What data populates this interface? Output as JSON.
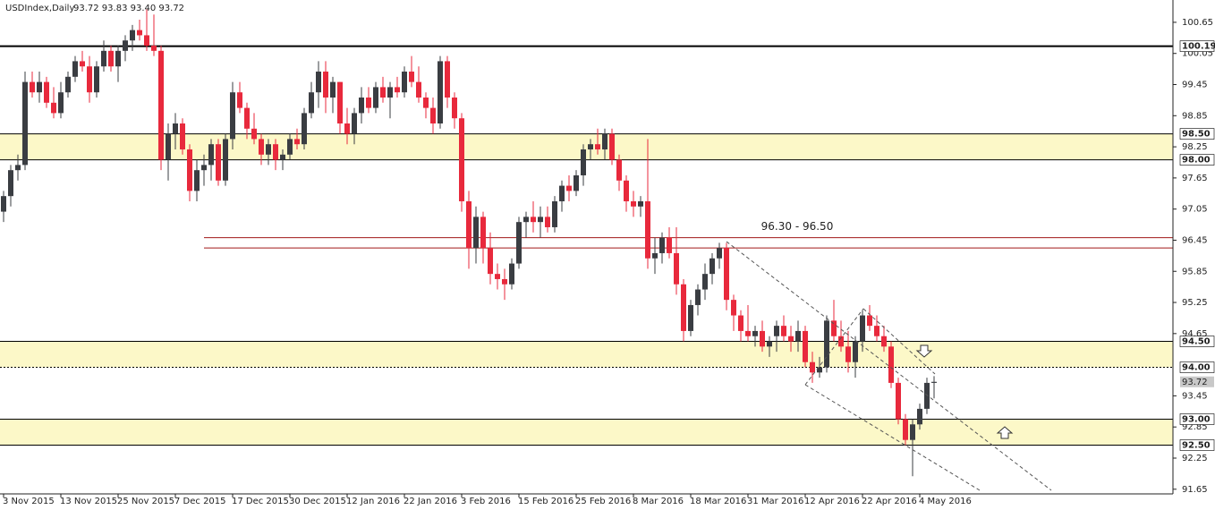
{
  "chart_data": {
    "type": "candlestick",
    "title": "USDIndex,Daily",
    "subtitle": "93.72 93.83 93.40 93.72",
    "ylim": [
      91.56,
      101.08
    ],
    "yticks": [
      100.65,
      100.05,
      99.45,
      98.85,
      98.25,
      97.65,
      97.05,
      96.45,
      95.85,
      95.25,
      94.65,
      93.45,
      92.85,
      92.25,
      91.65
    ],
    "bull_color": "#3a3d42",
    "bear_color": "#e8293c",
    "categories": [
      "3 Nov 2015",
      null,
      null,
      null,
      null,
      null,
      null,
      null,
      "13 Nov 2015",
      null,
      null,
      null,
      null,
      null,
      null,
      null,
      "25 Nov 2015",
      null,
      null,
      null,
      null,
      null,
      null,
      null,
      "7 Dec 2015",
      null,
      null,
      null,
      null,
      null,
      null,
      null,
      "17 Dec 2015",
      null,
      null,
      null,
      null,
      null,
      null,
      null,
      "30 Dec 2015",
      null,
      null,
      null,
      null,
      null,
      null,
      null,
      "12 Jan 2016",
      null,
      null,
      null,
      null,
      null,
      null,
      null,
      "22 Jan 2016",
      null,
      null,
      null,
      null,
      null,
      null,
      null,
      "3 Feb 2016",
      null,
      null,
      null,
      null,
      null,
      null,
      null,
      "15 Feb 2016",
      null,
      null,
      null,
      null,
      null,
      null,
      null,
      "25 Feb 2016",
      null,
      null,
      null,
      null,
      null,
      null,
      null,
      "8 Mar 2016",
      null,
      null,
      null,
      null,
      null,
      null,
      null,
      "18 Mar 2016",
      null,
      null,
      null,
      null,
      null,
      null,
      null,
      "31 Mar 2016",
      null,
      null,
      null,
      null,
      null,
      null,
      null,
      "12 Apr 2016",
      null,
      null,
      null,
      null,
      null,
      null,
      null,
      "22 Apr 2016",
      null,
      null,
      null,
      null,
      null,
      null,
      null,
      "4 May 2016",
      null,
      null
    ],
    "ohlc": [
      [
        97.0,
        97.4,
        96.8,
        97.3
      ],
      [
        97.3,
        97.9,
        97.1,
        97.8
      ],
      [
        97.8,
        98.1,
        97.6,
        97.9
      ],
      [
        97.9,
        99.7,
        97.8,
        99.5
      ],
      [
        99.5,
        99.7,
        99.2,
        99.3
      ],
      [
        99.3,
        99.7,
        99.1,
        99.5
      ],
      [
        99.5,
        99.6,
        99.0,
        99.1
      ],
      [
        99.1,
        99.4,
        98.8,
        98.9
      ],
      [
        98.9,
        99.5,
        98.8,
        99.3
      ],
      [
        99.3,
        99.7,
        99.2,
        99.6
      ],
      [
        99.6,
        100.0,
        99.5,
        99.9
      ],
      [
        99.9,
        100.1,
        99.7,
        99.8
      ],
      [
        99.8,
        100.0,
        99.1,
        99.3
      ],
      [
        99.3,
        99.9,
        99.2,
        99.8
      ],
      [
        99.8,
        100.3,
        99.7,
        100.1
      ],
      [
        100.1,
        100.2,
        99.7,
        99.8
      ],
      [
        99.8,
        100.2,
        99.5,
        100.1
      ],
      [
        100.1,
        100.4,
        99.9,
        100.3
      ],
      [
        100.3,
        100.6,
        100.1,
        100.5
      ],
      [
        100.5,
        100.7,
        100.3,
        100.4
      ],
      [
        100.4,
        100.9,
        100.1,
        100.2
      ],
      [
        100.2,
        100.8,
        100.0,
        100.1
      ],
      [
        100.1,
        100.2,
        97.8,
        98.0
      ],
      [
        98.0,
        98.7,
        97.6,
        98.5
      ],
      [
        98.5,
        98.9,
        98.2,
        98.7
      ],
      [
        98.7,
        98.8,
        98.1,
        98.2
      ],
      [
        98.2,
        98.3,
        97.2,
        97.4
      ],
      [
        97.4,
        98.0,
        97.2,
        97.8
      ],
      [
        97.8,
        98.1,
        97.5,
        97.9
      ],
      [
        97.9,
        98.4,
        97.6,
        98.3
      ],
      [
        98.3,
        98.4,
        97.5,
        97.6
      ],
      [
        97.6,
        98.5,
        97.5,
        98.4
      ],
      [
        98.4,
        99.5,
        98.2,
        99.3
      ],
      [
        99.3,
        99.5,
        98.9,
        99.0
      ],
      [
        99.0,
        99.1,
        98.4,
        98.6
      ],
      [
        98.6,
        98.9,
        98.3,
        98.4
      ],
      [
        98.4,
        98.5,
        97.9,
        98.1
      ],
      [
        98.1,
        98.4,
        97.9,
        98.3
      ],
      [
        98.3,
        98.4,
        97.8,
        98.0
      ],
      [
        98.0,
        98.2,
        97.8,
        98.1
      ],
      [
        98.1,
        98.5,
        98.0,
        98.4
      ],
      [
        98.4,
        98.6,
        98.2,
        98.3
      ],
      [
        98.3,
        99.0,
        98.2,
        98.9
      ],
      [
        98.9,
        99.5,
        98.8,
        99.3
      ],
      [
        99.3,
        99.9,
        99.0,
        99.7
      ],
      [
        99.7,
        99.9,
        98.9,
        99.2
      ],
      [
        99.2,
        99.6,
        98.9,
        99.5
      ],
      [
        99.5,
        99.5,
        98.5,
        98.7
      ],
      [
        98.7,
        99.0,
        98.3,
        98.5
      ],
      [
        98.5,
        99.0,
        98.3,
        98.9
      ],
      [
        98.9,
        99.4,
        98.7,
        99.2
      ],
      [
        99.2,
        99.4,
        98.9,
        99.0
      ],
      [
        99.0,
        99.5,
        98.9,
        99.4
      ],
      [
        99.4,
        99.6,
        99.1,
        99.2
      ],
      [
        99.2,
        99.5,
        98.8,
        99.4
      ],
      [
        99.4,
        99.6,
        99.2,
        99.3
      ],
      [
        99.3,
        99.8,
        99.2,
        99.7
      ],
      [
        99.7,
        100.0,
        99.4,
        99.5
      ],
      [
        99.5,
        99.8,
        99.1,
        99.2
      ],
      [
        99.2,
        99.3,
        98.8,
        99.0
      ],
      [
        99.0,
        99.2,
        98.5,
        98.7
      ],
      [
        98.7,
        100.0,
        98.6,
        99.9
      ],
      [
        99.9,
        100.0,
        99.0,
        99.2
      ],
      [
        99.2,
        99.3,
        98.6,
        98.8
      ],
      [
        98.8,
        98.9,
        97.0,
        97.2
      ],
      [
        97.2,
        97.4,
        95.9,
        96.3
      ],
      [
        96.3,
        97.1,
        96.0,
        96.9
      ],
      [
        96.9,
        97.0,
        96.0,
        96.3
      ],
      [
        96.3,
        96.6,
        95.6,
        95.8
      ],
      [
        95.8,
        96.0,
        95.5,
        95.7
      ],
      [
        95.7,
        95.9,
        95.3,
        95.6
      ],
      [
        95.6,
        96.1,
        95.5,
        96.0
      ],
      [
        96.0,
        96.9,
        95.9,
        96.8
      ],
      [
        96.8,
        97.0,
        96.5,
        96.9
      ],
      [
        96.9,
        97.2,
        96.6,
        96.8
      ],
      [
        96.8,
        97.1,
        96.5,
        96.9
      ],
      [
        96.9,
        97.1,
        96.6,
        96.7
      ],
      [
        96.7,
        97.3,
        96.6,
        97.2
      ],
      [
        97.2,
        97.6,
        97.0,
        97.5
      ],
      [
        97.5,
        97.7,
        97.2,
        97.4
      ],
      [
        97.4,
        97.8,
        97.3,
        97.7
      ],
      [
        97.7,
        98.3,
        97.5,
        98.2
      ],
      [
        98.2,
        98.4,
        98.0,
        98.3
      ],
      [
        98.3,
        98.6,
        98.1,
        98.2
      ],
      [
        98.2,
        98.6,
        98.0,
        98.5
      ],
      [
        98.5,
        98.6,
        97.9,
        98.0
      ],
      [
        98.0,
        98.1,
        97.4,
        97.6
      ],
      [
        97.6,
        97.7,
        97.0,
        97.2
      ],
      [
        97.2,
        97.4,
        96.9,
        97.1
      ],
      [
        97.1,
        97.3,
        96.9,
        97.2
      ],
      [
        97.2,
        98.4,
        95.9,
        96.1
      ],
      [
        96.1,
        96.5,
        95.8,
        96.2
      ],
      [
        96.2,
        96.6,
        96.0,
        96.5
      ],
      [
        96.5,
        96.7,
        96.1,
        96.2
      ],
      [
        96.2,
        96.7,
        95.4,
        95.6
      ],
      [
        95.6,
        95.7,
        94.5,
        94.7
      ],
      [
        94.7,
        95.3,
        94.6,
        95.2
      ],
      [
        95.2,
        95.6,
        95.0,
        95.5
      ],
      [
        95.5,
        96.0,
        95.3,
        95.8
      ],
      [
        95.8,
        96.2,
        95.6,
        96.1
      ],
      [
        96.1,
        96.4,
        95.9,
        96.3
      ],
      [
        96.3,
        96.4,
        95.1,
        95.3
      ],
      [
        95.3,
        95.4,
        94.7,
        95.0
      ],
      [
        95.0,
        95.1,
        94.5,
        94.7
      ],
      [
        94.7,
        95.2,
        94.5,
        94.6
      ],
      [
        94.6,
        94.8,
        94.4,
        94.7
      ],
      [
        94.7,
        94.9,
        94.3,
        94.4
      ],
      [
        94.4,
        94.6,
        94.2,
        94.5
      ],
      [
        94.6,
        94.9,
        94.3,
        94.8
      ],
      [
        94.8,
        95.0,
        94.5,
        94.6
      ],
      [
        94.6,
        94.8,
        94.3,
        94.5
      ],
      [
        94.5,
        94.9,
        94.3,
        94.7
      ],
      [
        94.7,
        94.8,
        94.0,
        94.1
      ],
      [
        94.1,
        94.3,
        93.7,
        93.9
      ],
      [
        93.9,
        94.2,
        93.8,
        94.0
      ],
      [
        94.0,
        95.0,
        93.9,
        94.9
      ],
      [
        94.9,
        95.3,
        94.5,
        94.6
      ],
      [
        94.6,
        94.9,
        94.3,
        94.4
      ],
      [
        94.4,
        94.7,
        93.9,
        94.1
      ],
      [
        94.1,
        94.6,
        93.8,
        94.5
      ],
      [
        94.5,
        95.1,
        94.3,
        95.0
      ],
      [
        95.0,
        95.2,
        94.7,
        94.8
      ],
      [
        94.8,
        95.0,
        94.5,
        94.6
      ],
      [
        94.6,
        94.8,
        94.3,
        94.4
      ],
      [
        94.4,
        94.5,
        93.6,
        93.7
      ],
      [
        93.7,
        93.8,
        92.9,
        93.0
      ],
      [
        93.0,
        93.1,
        92.5,
        92.6
      ],
      [
        92.6,
        93.0,
        91.9,
        92.9
      ],
      [
        92.9,
        93.3,
        92.8,
        93.2
      ],
      [
        93.2,
        93.8,
        93.1,
        93.7
      ],
      [
        93.7,
        93.83,
        93.4,
        93.72
      ]
    ],
    "zones": [
      {
        "from": {
          "value": 98,
          "label": "98.00"
        },
        "to": {
          "value": 98.5,
          "label": "98.50"
        },
        "color": "#fcf8c8"
      },
      {
        "from": {
          "value": 94,
          "label": "94.00"
        },
        "to": {
          "value": 94.5,
          "label": "94.50"
        },
        "color": "#fcf8c8"
      },
      {
        "from": {
          "value": 92.5,
          "label": "92.50"
        },
        "to": {
          "value": 93,
          "label": "93.00"
        },
        "color": "#fcf8c8"
      }
    ],
    "hlines": [
      {
        "value": 100.19,
        "color": "#000000"
      }
    ],
    "resistance": {
      "label": "96.30 - 96.50",
      "lines": [
        96.3,
        96.5
      ],
      "color": "#a01818"
    },
    "last_price": 93.72
  }
}
